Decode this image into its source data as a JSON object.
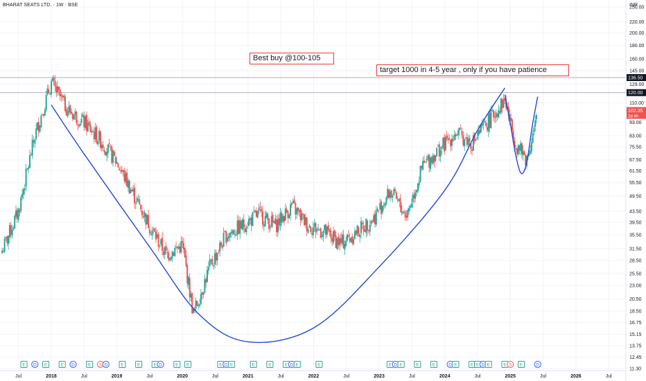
{
  "header": {
    "symbol_title": "BHARAT SEATS LTD. · 1W · BSE",
    "currency": "INR"
  },
  "annotations": {
    "note1": "Best buy @100-105",
    "note2": "target 1000 in 4-5 year , only if you have patience"
  },
  "price_tags": {
    "level_high": "136.50",
    "level_mid": "120.00",
    "last_price": "102.35",
    "countdown": "2d 4h"
  },
  "colors": {
    "up": "#26a69a",
    "down": "#ef5350",
    "curve": "#2346d8",
    "box": "#e53935",
    "hline": "#9598a1",
    "price_tag": "#ef5350"
  },
  "chart_data": {
    "type": "candlestick",
    "y_scale": "log",
    "y_ticks": [
      250.0,
      220.0,
      200.0,
      180.0,
      160.0,
      145.0,
      129.0,
      110.0,
      93.0,
      83.0,
      75.5,
      67.5,
      61.5,
      55.5,
      49.5,
      43.5,
      39.5,
      35.5,
      31.5,
      28.5,
      25.5,
      23.0,
      20.5,
      18.5,
      16.75,
      15.15,
      13.75,
      12.45,
      11.3
    ],
    "x_ticks": [
      "Jul",
      "2018",
      "Jul",
      "2019",
      "Jul",
      "2020",
      "Jul",
      "2021",
      "Jul",
      "2022",
      "Jul",
      "2023",
      "Jul",
      "2024",
      "Jul",
      "2025",
      "Jul",
      "2026",
      "Jul"
    ],
    "x_range": [
      "2017-04",
      "2026-09"
    ],
    "horizontal_lines": [
      136.5,
      120.0
    ],
    "series": [
      {
        "values": [
          [
            "2017-04",
            32,
            30
          ],
          [
            "2017-07",
            45,
            42
          ],
          [
            "2017-10",
            86,
            80
          ],
          [
            "2018-01",
            133,
            128
          ],
          [
            "2018-04",
            106,
            102
          ],
          [
            "2018-07",
            95,
            91
          ],
          [
            "2018-10",
            82,
            78
          ],
          [
            "2019-01",
            68,
            64
          ],
          [
            "2019-04",
            52,
            49
          ],
          [
            "2019-07",
            40,
            37
          ],
          [
            "2019-10",
            31,
            29
          ],
          [
            "2020-01",
            34,
            31
          ],
          [
            "2020-03",
            19,
            17
          ],
          [
            "2020-06",
            28,
            26
          ],
          [
            "2020-09",
            37,
            34
          ],
          [
            "2020-12",
            40,
            37
          ],
          [
            "2021-03",
            44,
            41
          ],
          [
            "2021-06",
            40,
            37
          ],
          [
            "2021-09",
            47,
            44
          ],
          [
            "2021-12",
            40,
            37
          ],
          [
            "2022-03",
            38,
            35
          ],
          [
            "2022-06",
            34,
            32
          ],
          [
            "2022-09",
            38,
            35
          ],
          [
            "2022-12",
            42,
            40
          ],
          [
            "2023-03",
            53,
            50
          ],
          [
            "2023-06",
            43,
            41
          ],
          [
            "2023-09",
            66,
            62
          ],
          [
            "2023-12",
            76,
            72
          ],
          [
            "2024-03",
            87,
            83
          ],
          [
            "2024-06",
            80,
            76
          ],
          [
            "2024-09",
            96,
            92
          ],
          [
            "2024-12",
            117,
            109
          ],
          [
            "2025-02",
            79,
            75
          ],
          [
            "2025-04",
            70,
            66
          ],
          [
            "2025-06",
            101,
            98
          ]
        ]
      }
    ],
    "curves": [
      {
        "points": [
          [
            "2018-01",
            108
          ],
          [
            "2018-07",
            71
          ],
          [
            "2019-07",
            32
          ],
          [
            "2020-04",
            18
          ],
          [
            "2021-01",
            14.2
          ],
          [
            "2022-01",
            16
          ],
          [
            "2023-01",
            27
          ],
          [
            "2024-01",
            52
          ],
          [
            "2024-07",
            87
          ],
          [
            "2024-12",
            125
          ]
        ]
      },
      {
        "points": [
          [
            "2024-12",
            118
          ],
          [
            "2025-01",
            92
          ],
          [
            "2025-02",
            70
          ],
          [
            "2025-03",
            60
          ],
          [
            "2025-04",
            66
          ],
          [
            "2025-05",
            90
          ],
          [
            "2025-06",
            116
          ]
        ]
      }
    ],
    "event_markers": [
      [
        "2017-08",
        "E"
      ],
      [
        "2017-10",
        "D"
      ],
      [
        "2017-12",
        "E"
      ],
      [
        "2018-03",
        "E"
      ],
      [
        "2018-05",
        "D"
      ],
      [
        "2018-08",
        "E"
      ],
      [
        "2018-10",
        "S"
      ],
      [
        "2018-11",
        "D"
      ],
      [
        "2019-02",
        "E"
      ],
      [
        "2019-05",
        "E"
      ],
      [
        "2019-08",
        "E"
      ],
      [
        "2019-09",
        "D"
      ],
      [
        "2019-12",
        "E"
      ],
      [
        "2020-02",
        "E"
      ],
      [
        "2020-08",
        "E"
      ],
      [
        "2020-09",
        "D"
      ],
      [
        "2020-10",
        "E"
      ],
      [
        "2021-02",
        "E"
      ],
      [
        "2021-05",
        "E"
      ],
      [
        "2021-08",
        "E"
      ],
      [
        "2021-09",
        "D"
      ],
      [
        "2021-10",
        "E"
      ],
      [
        "2022-02",
        "E"
      ],
      [
        "2023-03",
        "E"
      ],
      [
        "2023-04",
        "D"
      ],
      [
        "2023-05",
        "E"
      ],
      [
        "2023-08",
        "E"
      ],
      [
        "2023-11",
        "E"
      ],
      [
        "2024-02",
        "D"
      ],
      [
        "2024-03",
        "E"
      ],
      [
        "2024-06",
        "E"
      ],
      [
        "2024-07",
        "E"
      ],
      [
        "2024-08",
        "D"
      ],
      [
        "2024-09",
        "E"
      ],
      [
        "2024-12",
        "E"
      ],
      [
        "2025-01",
        "S"
      ],
      [
        "2025-03",
        "E"
      ],
      [
        "2025-06",
        "D"
      ]
    ]
  }
}
